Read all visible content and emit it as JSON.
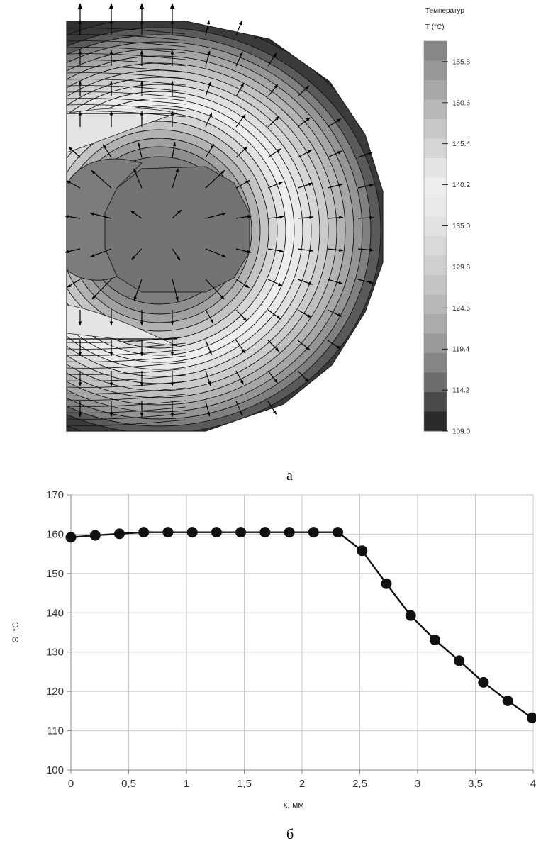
{
  "captions": {
    "top": "а",
    "bottom": "б"
  },
  "chart_data": [
    {
      "type": "heatmap",
      "legend": {
        "title_line1": "Температур",
        "title_line2": "T (°C)",
        "ticks": [
          "155.8",
          "150.6",
          "145.4",
          "140.2",
          "135.0",
          "129.8",
          "124.6",
          "119.4",
          "114.2",
          "109.0"
        ],
        "range": [
          109.0,
          158.4
        ],
        "colors": [
          "#2a2a2a",
          "#4a4a4a",
          "#6c6c6c",
          "#858585",
          "#9a9a9a",
          "#ababab",
          "#b8b8b8",
          "#c4c4c4",
          "#cfcfcf",
          "#d9d9d9",
          "#e2e2e2",
          "#eaeaea",
          "#eeeeee",
          "#e4e4e4",
          "#d6d6d6",
          "#c8c8c8",
          "#b8b8b8",
          "#a8a8a8",
          "#979797",
          "#878787"
        ]
      },
      "arrows": "vector field of heat flux: arrows point outward from the central core"
    },
    {
      "type": "line",
      "xlabel": "x, мм",
      "ylabel": "Θ, °C",
      "xlim": [
        0,
        4
      ],
      "ylim": [
        100,
        170
      ],
      "x_ticks": [
        "0",
        "0,5",
        "1",
        "1,5",
        "2",
        "2,5",
        "3",
        "3,5",
        "4"
      ],
      "y_ticks": [
        "100",
        "110",
        "120",
        "130",
        "140",
        "150",
        "160",
        "170"
      ],
      "grid": true,
      "series": [
        {
          "x": [
            0,
            0.21,
            0.42,
            0.63,
            0.84,
            1.05,
            1.26,
            1.47,
            1.68,
            1.89,
            2.1,
            2.31,
            2.52,
            2.73,
            2.94,
            3.15,
            3.36,
            3.57,
            3.78,
            3.99
          ],
          "y": [
            159.2,
            159.7,
            160.1,
            160.5,
            160.5,
            160.5,
            160.5,
            160.5,
            160.5,
            160.5,
            160.5,
            160.5,
            155.8,
            147.4,
            139.3,
            133.1,
            127.8,
            122.3,
            117.6,
            113.3
          ]
        }
      ]
    }
  ]
}
